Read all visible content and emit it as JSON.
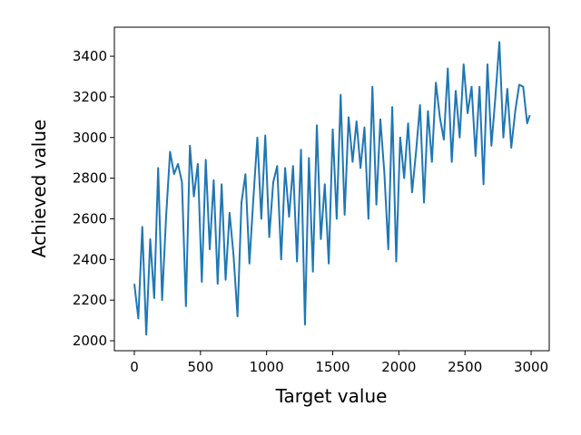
{
  "chart_data": {
    "type": "line",
    "x_label": "Target value",
    "y_label": "Achieved value",
    "x": [
      0,
      30,
      60,
      90,
      120,
      150,
      180,
      210,
      240,
      270,
      300,
      330,
      360,
      390,
      420,
      450,
      480,
      510,
      540,
      570,
      600,
      630,
      660,
      690,
      720,
      750,
      780,
      810,
      840,
      870,
      900,
      930,
      960,
      990,
      1020,
      1050,
      1080,
      1110,
      1140,
      1170,
      1200,
      1230,
      1260,
      1290,
      1320,
      1350,
      1380,
      1410,
      1440,
      1470,
      1500,
      1530,
      1560,
      1590,
      1620,
      1650,
      1680,
      1710,
      1740,
      1770,
      1800,
      1830,
      1860,
      1890,
      1920,
      1950,
      1980,
      2010,
      2040,
      2070,
      2100,
      2130,
      2160,
      2190,
      2220,
      2250,
      2280,
      2310,
      2340,
      2370,
      2400,
      2430,
      2460,
      2490,
      2520,
      2550,
      2580,
      2610,
      2640,
      2670,
      2700,
      2730,
      2760,
      2790,
      2820,
      2850,
      2880,
      2910,
      2940,
      2970,
      2990
    ],
    "values": [
      2280,
      2110,
      2560,
      2030,
      2500,
      2210,
      2850,
      2200,
      2610,
      2930,
      2820,
      2870,
      2780,
      2170,
      2960,
      2710,
      2870,
      2290,
      2890,
      2450,
      2790,
      2280,
      2770,
      2300,
      2630,
      2420,
      2120,
      2680,
      2820,
      2380,
      2700,
      3000,
      2600,
      3010,
      2510,
      2780,
      2860,
      2400,
      2850,
      2610,
      2860,
      2390,
      2940,
      2080,
      2900,
      2340,
      3060,
      2500,
      2770,
      2380,
      3040,
      2600,
      3210,
      2620,
      3100,
      2880,
      3080,
      2850,
      3050,
      2600,
      3250,
      2670,
      3090,
      2830,
      2450,
      3150,
      2390,
      3000,
      2800,
      3070,
      2730,
      2930,
      3160,
      2680,
      3130,
      2880,
      3270,
      3100,
      2990,
      3340,
      2880,
      3230,
      3000,
      3360,
      3120,
      3250,
      2910,
      3250,
      2770,
      3360,
      2960,
      3200,
      3470,
      3000,
      3240,
      2950,
      3130,
      3260,
      3250,
      3070,
      3110
    ],
    "color": "#1f77b4",
    "xlim": [
      -151,
      3137
    ],
    "ylim": [
      1951,
      3543
    ],
    "xticks": [
      0,
      500,
      1000,
      1500,
      2000,
      2500,
      3000
    ],
    "yticks": [
      2000,
      2200,
      2400,
      2600,
      2800,
      3000,
      3200,
      3400
    ]
  }
}
